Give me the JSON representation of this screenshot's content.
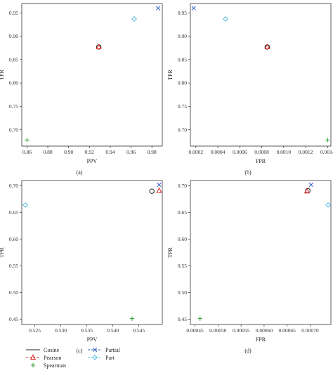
{
  "colors": {
    "Cosine": "#222222",
    "Pearson": "#e02020",
    "Spearman": "#2aa02a",
    "Partial": "#3060c8",
    "Part": "#55bde0"
  },
  "markers": {
    "Cosine": "circle",
    "Pearson": "triangle",
    "Spearman": "plus",
    "Partial": "x",
    "Part": "diamond"
  },
  "legend": [
    {
      "name": "Cosine",
      "line": "solid"
    },
    {
      "name": "Partial",
      "line": "dashed"
    },
    {
      "name": "Pearson",
      "line": "dashed"
    },
    {
      "name": "Part",
      "line": "dashed"
    },
    {
      "name": "Spearman",
      "line": "none"
    }
  ],
  "chart_data": [
    {
      "type": "scatter",
      "panel_label": "(a)",
      "xlabel": "PPV",
      "ylabel": "TPR",
      "xlim": [
        0.855,
        0.99
      ],
      "ylim": [
        0.665,
        0.97
      ],
      "xticks": [
        "0.86",
        "0.88",
        "0.90",
        "0.92",
        "0.94",
        "0.96",
        "0.98"
      ],
      "yticks": [
        "0.70",
        "0.75",
        "0.80",
        "0.85",
        "0.90",
        "0.95"
      ],
      "series": [
        {
          "name": "Cosine",
          "x": 0.929,
          "y": 0.877
        },
        {
          "name": "Pearson",
          "x": 0.929,
          "y": 0.877
        },
        {
          "name": "Spearman",
          "x": 0.86,
          "y": 0.678
        },
        {
          "name": "Partial",
          "x": 0.986,
          "y": 0.96
        },
        {
          "name": "Part",
          "x": 0.963,
          "y": 0.937
        }
      ]
    },
    {
      "type": "scatter",
      "panel_label": "(b)",
      "xlabel": "FPR",
      "ylabel": "TPR",
      "xlim": [
        0.00015,
        0.00143
      ],
      "ylim": [
        0.665,
        0.97
      ],
      "xticks": [
        "0.0002",
        "0.0004",
        "0.0006",
        "0.0008",
        "0.0010",
        "0.0012",
        "0.0014"
      ],
      "yticks": [
        "0.70",
        "0.75",
        "0.80",
        "0.85",
        "0.90",
        "0.95"
      ],
      "series": [
        {
          "name": "Cosine",
          "x": 0.00085,
          "y": 0.877
        },
        {
          "name": "Pearson",
          "x": 0.00085,
          "y": 0.877
        },
        {
          "name": "Spearman",
          "x": 0.0014,
          "y": 0.678
        },
        {
          "name": "Partial",
          "x": 0.00018,
          "y": 0.96
        },
        {
          "name": "Part",
          "x": 0.00047,
          "y": 0.937
        }
      ]
    },
    {
      "type": "scatter",
      "panel_label": "(c)",
      "xlabel": "PPV",
      "ylabel": "TPR",
      "xlim": [
        0.5225,
        0.5495
      ],
      "ylim": [
        0.44,
        0.71
      ],
      "xticks": [
        "0.525",
        "0.530",
        "0.535",
        "0.540",
        "0.545"
      ],
      "yticks": [
        "0.45",
        "0.50",
        "0.55",
        "0.60",
        "0.65",
        "0.70"
      ],
      "series": [
        {
          "name": "Cosine",
          "x": 0.5475,
          "y": 0.69
        },
        {
          "name": "Pearson",
          "x": 0.5489,
          "y": 0.691
        },
        {
          "name": "Spearman",
          "x": 0.5437,
          "y": 0.451
        },
        {
          "name": "Partial",
          "x": 0.5489,
          "y": 0.702
        },
        {
          "name": "Part",
          "x": 0.5232,
          "y": 0.664
        }
      ]
    },
    {
      "type": "scatter",
      "panel_label": "(d)",
      "xlabel": "FPR",
      "ylabel": "TPR",
      "xlim": [
        0.00044,
        0.000745
      ],
      "ylim": [
        0.44,
        0.71
      ],
      "xticks": [
        "0.00045",
        "0.00050",
        "0.00055",
        "0.00060",
        "0.00065",
        "0.00070"
      ],
      "yticks": [
        "0.45",
        "0.50",
        "0.55",
        "0.60",
        "0.65",
        "0.70"
      ],
      "series": [
        {
          "name": "Cosine",
          "x": 0.000695,
          "y": 0.691
        },
        {
          "name": "Pearson",
          "x": 0.000693,
          "y": 0.69
        },
        {
          "name": "Spearman",
          "x": 0.000461,
          "y": 0.451
        },
        {
          "name": "Partial",
          "x": 0.000702,
          "y": 0.702
        },
        {
          "name": "Part",
          "x": 0.000739,
          "y": 0.664
        }
      ]
    }
  ]
}
